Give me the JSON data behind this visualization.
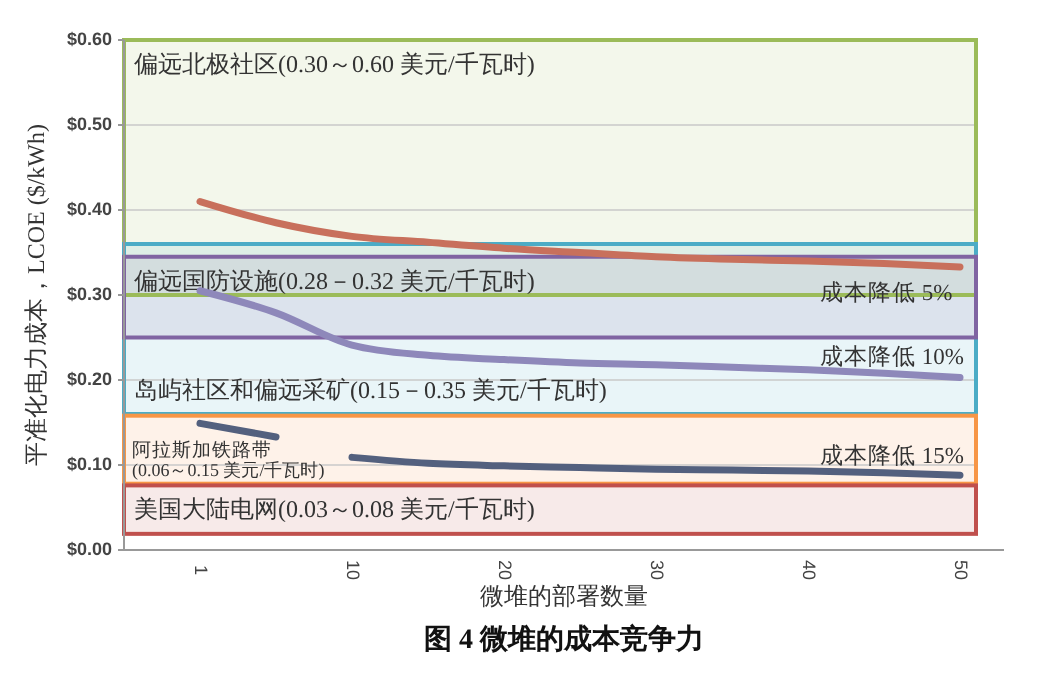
{
  "chart_data": {
    "type": "line",
    "title": "图 4 微堆的成本竞争力",
    "xlabel": "微堆的部署数量",
    "ylabel": "平准化电力成本，LCOE ($/kWh)",
    "categories": [
      "1",
      null,
      "10",
      null,
      "20",
      null,
      "30",
      null,
      "40",
      null,
      "50"
    ],
    "series": [
      {
        "color": "#c8705c",
        "values": [
          0.41,
          0.385,
          0.369,
          0.362,
          0.355,
          0.35,
          0.345,
          0.342,
          0.34,
          0.337,
          0.333
        ]
      },
      {
        "color": "#8e88ba",
        "values": [
          0.305,
          0.279,
          0.241,
          0.229,
          0.224,
          0.22,
          0.218,
          0.215,
          0.212,
          0.208,
          0.203
        ]
      },
      {
        "color": "#53607e",
        "values": [
          0.149,
          0.133,
          null,
          null,
          null,
          null,
          null,
          null,
          null,
          null,
          null
        ]
      },
      {
        "color": "#53607e",
        "values": [
          null,
          null,
          0.109,
          0.102,
          0.099,
          0.097,
          0.095,
          0.094,
          0.093,
          0.091,
          0.088
        ]
      }
    ],
    "ylim": [
      0,
      0.6
    ],
    "yticks": [
      {
        "value": 0,
        "label": "$0.00"
      },
      {
        "value": 0.1,
        "label": "$0.10"
      },
      {
        "value": 0.2,
        "label": "$0.20"
      },
      {
        "value": 0.3,
        "label": "$0.30"
      },
      {
        "value": 0.4,
        "label": "$0.40"
      },
      {
        "value": 0.5,
        "label": "$0.50"
      },
      {
        "value": 0.6,
        "label": "$0.60"
      }
    ],
    "grid": "y",
    "bands": [
      {
        "axis": "y",
        "from": 0.3,
        "to": 0.6,
        "label": "偏远北极社区(0.30～0.60 美元/千瓦时)",
        "color": "#9bbb59"
      },
      {
        "axis": "y",
        "from": 0.16,
        "to": 0.36,
        "label": "岛屿社区和偏远采矿(0.15－0.35 美元/千瓦时)",
        "color": "#4bacc6"
      },
      {
        "axis": "y",
        "from": 0.25,
        "to": 0.345,
        "label": "偏远国防设施(0.28－0.32 美元/千瓦时)",
        "color": "#8064a2"
      },
      {
        "axis": "y",
        "from": 0.078,
        "to": 0.158,
        "label": "阿拉斯加铁路带\n(0.06～0.15 美元/千瓦时)",
        "color": "#f79646"
      },
      {
        "axis": "y",
        "from": 0.019,
        "to": 0.076,
        "label": "美国大陆电网(0.03～0.08 美元/千瓦时)",
        "color": "#c0504d"
      }
    ],
    "annotations": [
      {
        "text": "成本降低 5%",
        "x": "40",
        "y": 0.3
      },
      {
        "text": "成本降低 10%",
        "x": "40",
        "y": 0.225
      },
      {
        "text": "成本降低 15%",
        "x": "40",
        "y": 0.108
      }
    ]
  }
}
